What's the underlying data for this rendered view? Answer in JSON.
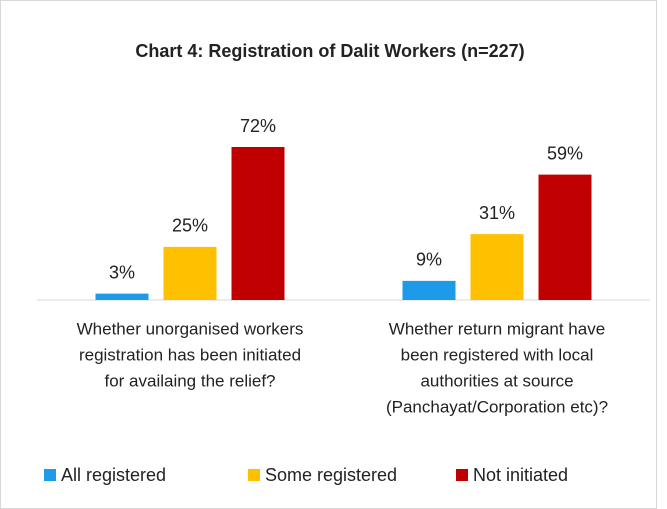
{
  "chart_data": {
    "type": "bar",
    "title": "Chart 4: Registration of Dalit Workers (n=227)",
    "categories": [
      [
        "Whether unorganised workers",
        "registration has been initiated",
        "for availaing the relief?"
      ],
      [
        "Whether return migrant have",
        "been registered with local",
        "authorities at source",
        "(Panchayat/Corporation etc)?"
      ]
    ],
    "series": [
      {
        "name": "All registered",
        "color": "#1e9be8",
        "values": [
          3,
          9
        ],
        "value_labels": [
          "3%",
          "9%"
        ]
      },
      {
        "name": "Some registered",
        "color": "#ffc000",
        "values": [
          25,
          31
        ],
        "value_labels": [
          "25%",
          "31%"
        ]
      },
      {
        "name": "Not initiated",
        "color": "#c00000",
        "values": [
          72,
          59
        ],
        "value_labels": [
          "72%",
          "59%"
        ]
      }
    ]
  }
}
